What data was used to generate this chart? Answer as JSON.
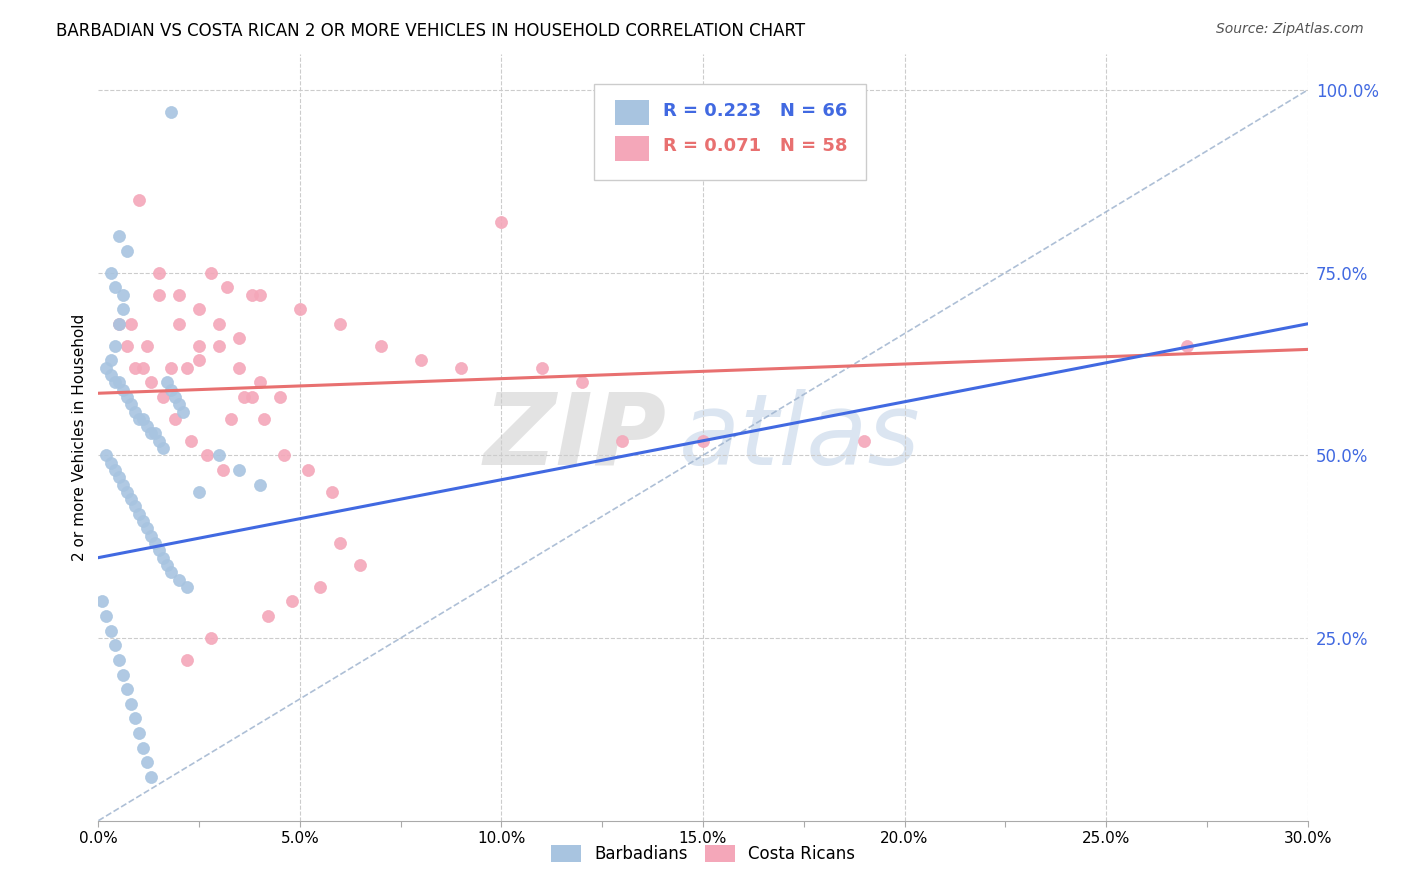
{
  "title": "BARBADIAN VS COSTA RICAN 2 OR MORE VEHICLES IN HOUSEHOLD CORRELATION CHART",
  "source": "Source: ZipAtlas.com",
  "ylabel": "2 or more Vehicles in Household",
  "x_min": 0.0,
  "x_max": 0.3,
  "y_min": 0.0,
  "y_max": 1.05,
  "x_tick_labels": [
    "0.0%",
    "",
    "5.0%",
    "",
    "10.0%",
    "",
    "15.0%",
    "",
    "20.0%",
    "",
    "25.0%",
    "",
    "30.0%"
  ],
  "x_tick_vals": [
    0.0,
    0.025,
    0.05,
    0.075,
    0.1,
    0.125,
    0.15,
    0.175,
    0.2,
    0.225,
    0.25,
    0.275,
    0.3
  ],
  "x_gridline_vals": [
    0.05,
    0.1,
    0.15,
    0.2,
    0.25,
    0.3
  ],
  "y_tick_labels_right": [
    "100.0%",
    "75.0%",
    "50.0%",
    "25.0%"
  ],
  "y_tick_vals_right": [
    1.0,
    0.75,
    0.5,
    0.25
  ],
  "barbadian_color": "#a8c4e0",
  "costa_rican_color": "#f4a7b9",
  "barbadian_R": 0.223,
  "barbadian_N": 66,
  "costa_rican_R": 0.071,
  "costa_rican_N": 58,
  "legend_label_1": "Barbadians",
  "legend_label_2": "Costa Ricans",
  "trend_color_barbadian": "#4169e1",
  "trend_color_costa_rican": "#e87070",
  "diagonal_color": "#9ab0cc",
  "watermark_zip": "ZIP",
  "watermark_atlas": "atlas",
  "background_color": "#ffffff",
  "barbadian_x": [
    0.018,
    0.005,
    0.007,
    0.003,
    0.004,
    0.006,
    0.006,
    0.005,
    0.004,
    0.003,
    0.002,
    0.003,
    0.004,
    0.005,
    0.006,
    0.007,
    0.008,
    0.009,
    0.01,
    0.011,
    0.012,
    0.013,
    0.014,
    0.015,
    0.016,
    0.017,
    0.018,
    0.019,
    0.02,
    0.021,
    0.002,
    0.003,
    0.004,
    0.005,
    0.006,
    0.007,
    0.008,
    0.009,
    0.01,
    0.011,
    0.012,
    0.013,
    0.014,
    0.015,
    0.016,
    0.017,
    0.018,
    0.02,
    0.022,
    0.025,
    0.001,
    0.002,
    0.003,
    0.004,
    0.005,
    0.006,
    0.007,
    0.008,
    0.009,
    0.01,
    0.011,
    0.012,
    0.013,
    0.03,
    0.035,
    0.04
  ],
  "barbadian_y": [
    0.97,
    0.8,
    0.78,
    0.75,
    0.73,
    0.72,
    0.7,
    0.68,
    0.65,
    0.63,
    0.62,
    0.61,
    0.6,
    0.6,
    0.59,
    0.58,
    0.57,
    0.56,
    0.55,
    0.55,
    0.54,
    0.53,
    0.53,
    0.52,
    0.51,
    0.6,
    0.59,
    0.58,
    0.57,
    0.56,
    0.5,
    0.49,
    0.48,
    0.47,
    0.46,
    0.45,
    0.44,
    0.43,
    0.42,
    0.41,
    0.4,
    0.39,
    0.38,
    0.37,
    0.36,
    0.35,
    0.34,
    0.33,
    0.32,
    0.45,
    0.3,
    0.28,
    0.26,
    0.24,
    0.22,
    0.2,
    0.18,
    0.16,
    0.14,
    0.12,
    0.1,
    0.08,
    0.06,
    0.5,
    0.48,
    0.46
  ],
  "costa_rican_x": [
    0.01,
    0.015,
    0.02,
    0.025,
    0.03,
    0.035,
    0.04,
    0.008,
    0.012,
    0.018,
    0.022,
    0.028,
    0.032,
    0.038,
    0.05,
    0.06,
    0.07,
    0.08,
    0.09,
    0.1,
    0.11,
    0.12,
    0.03,
    0.025,
    0.035,
    0.04,
    0.045,
    0.015,
    0.02,
    0.025,
    0.005,
    0.007,
    0.009,
    0.011,
    0.013,
    0.016,
    0.019,
    0.023,
    0.027,
    0.031,
    0.036,
    0.041,
    0.046,
    0.052,
    0.058,
    0.15,
    0.19,
    0.27,
    0.06,
    0.065,
    0.055,
    0.048,
    0.042,
    0.038,
    0.033,
    0.028,
    0.022,
    0.13
  ],
  "costa_rican_y": [
    0.85,
    0.75,
    0.72,
    0.7,
    0.68,
    0.66,
    0.72,
    0.68,
    0.65,
    0.62,
    0.62,
    0.75,
    0.73,
    0.72,
    0.7,
    0.68,
    0.65,
    0.63,
    0.62,
    0.82,
    0.62,
    0.6,
    0.65,
    0.63,
    0.62,
    0.6,
    0.58,
    0.72,
    0.68,
    0.65,
    0.68,
    0.65,
    0.62,
    0.62,
    0.6,
    0.58,
    0.55,
    0.52,
    0.5,
    0.48,
    0.58,
    0.55,
    0.5,
    0.48,
    0.45,
    0.52,
    0.52,
    0.65,
    0.38,
    0.35,
    0.32,
    0.3,
    0.28,
    0.58,
    0.55,
    0.25,
    0.22,
    0.52
  ],
  "trend_b_x0": 0.0,
  "trend_b_y0": 0.36,
  "trend_b_x1": 0.3,
  "trend_b_y1": 0.68,
  "trend_c_x0": 0.0,
  "trend_c_y0": 0.585,
  "trend_c_x1": 0.3,
  "trend_c_y1": 0.645
}
